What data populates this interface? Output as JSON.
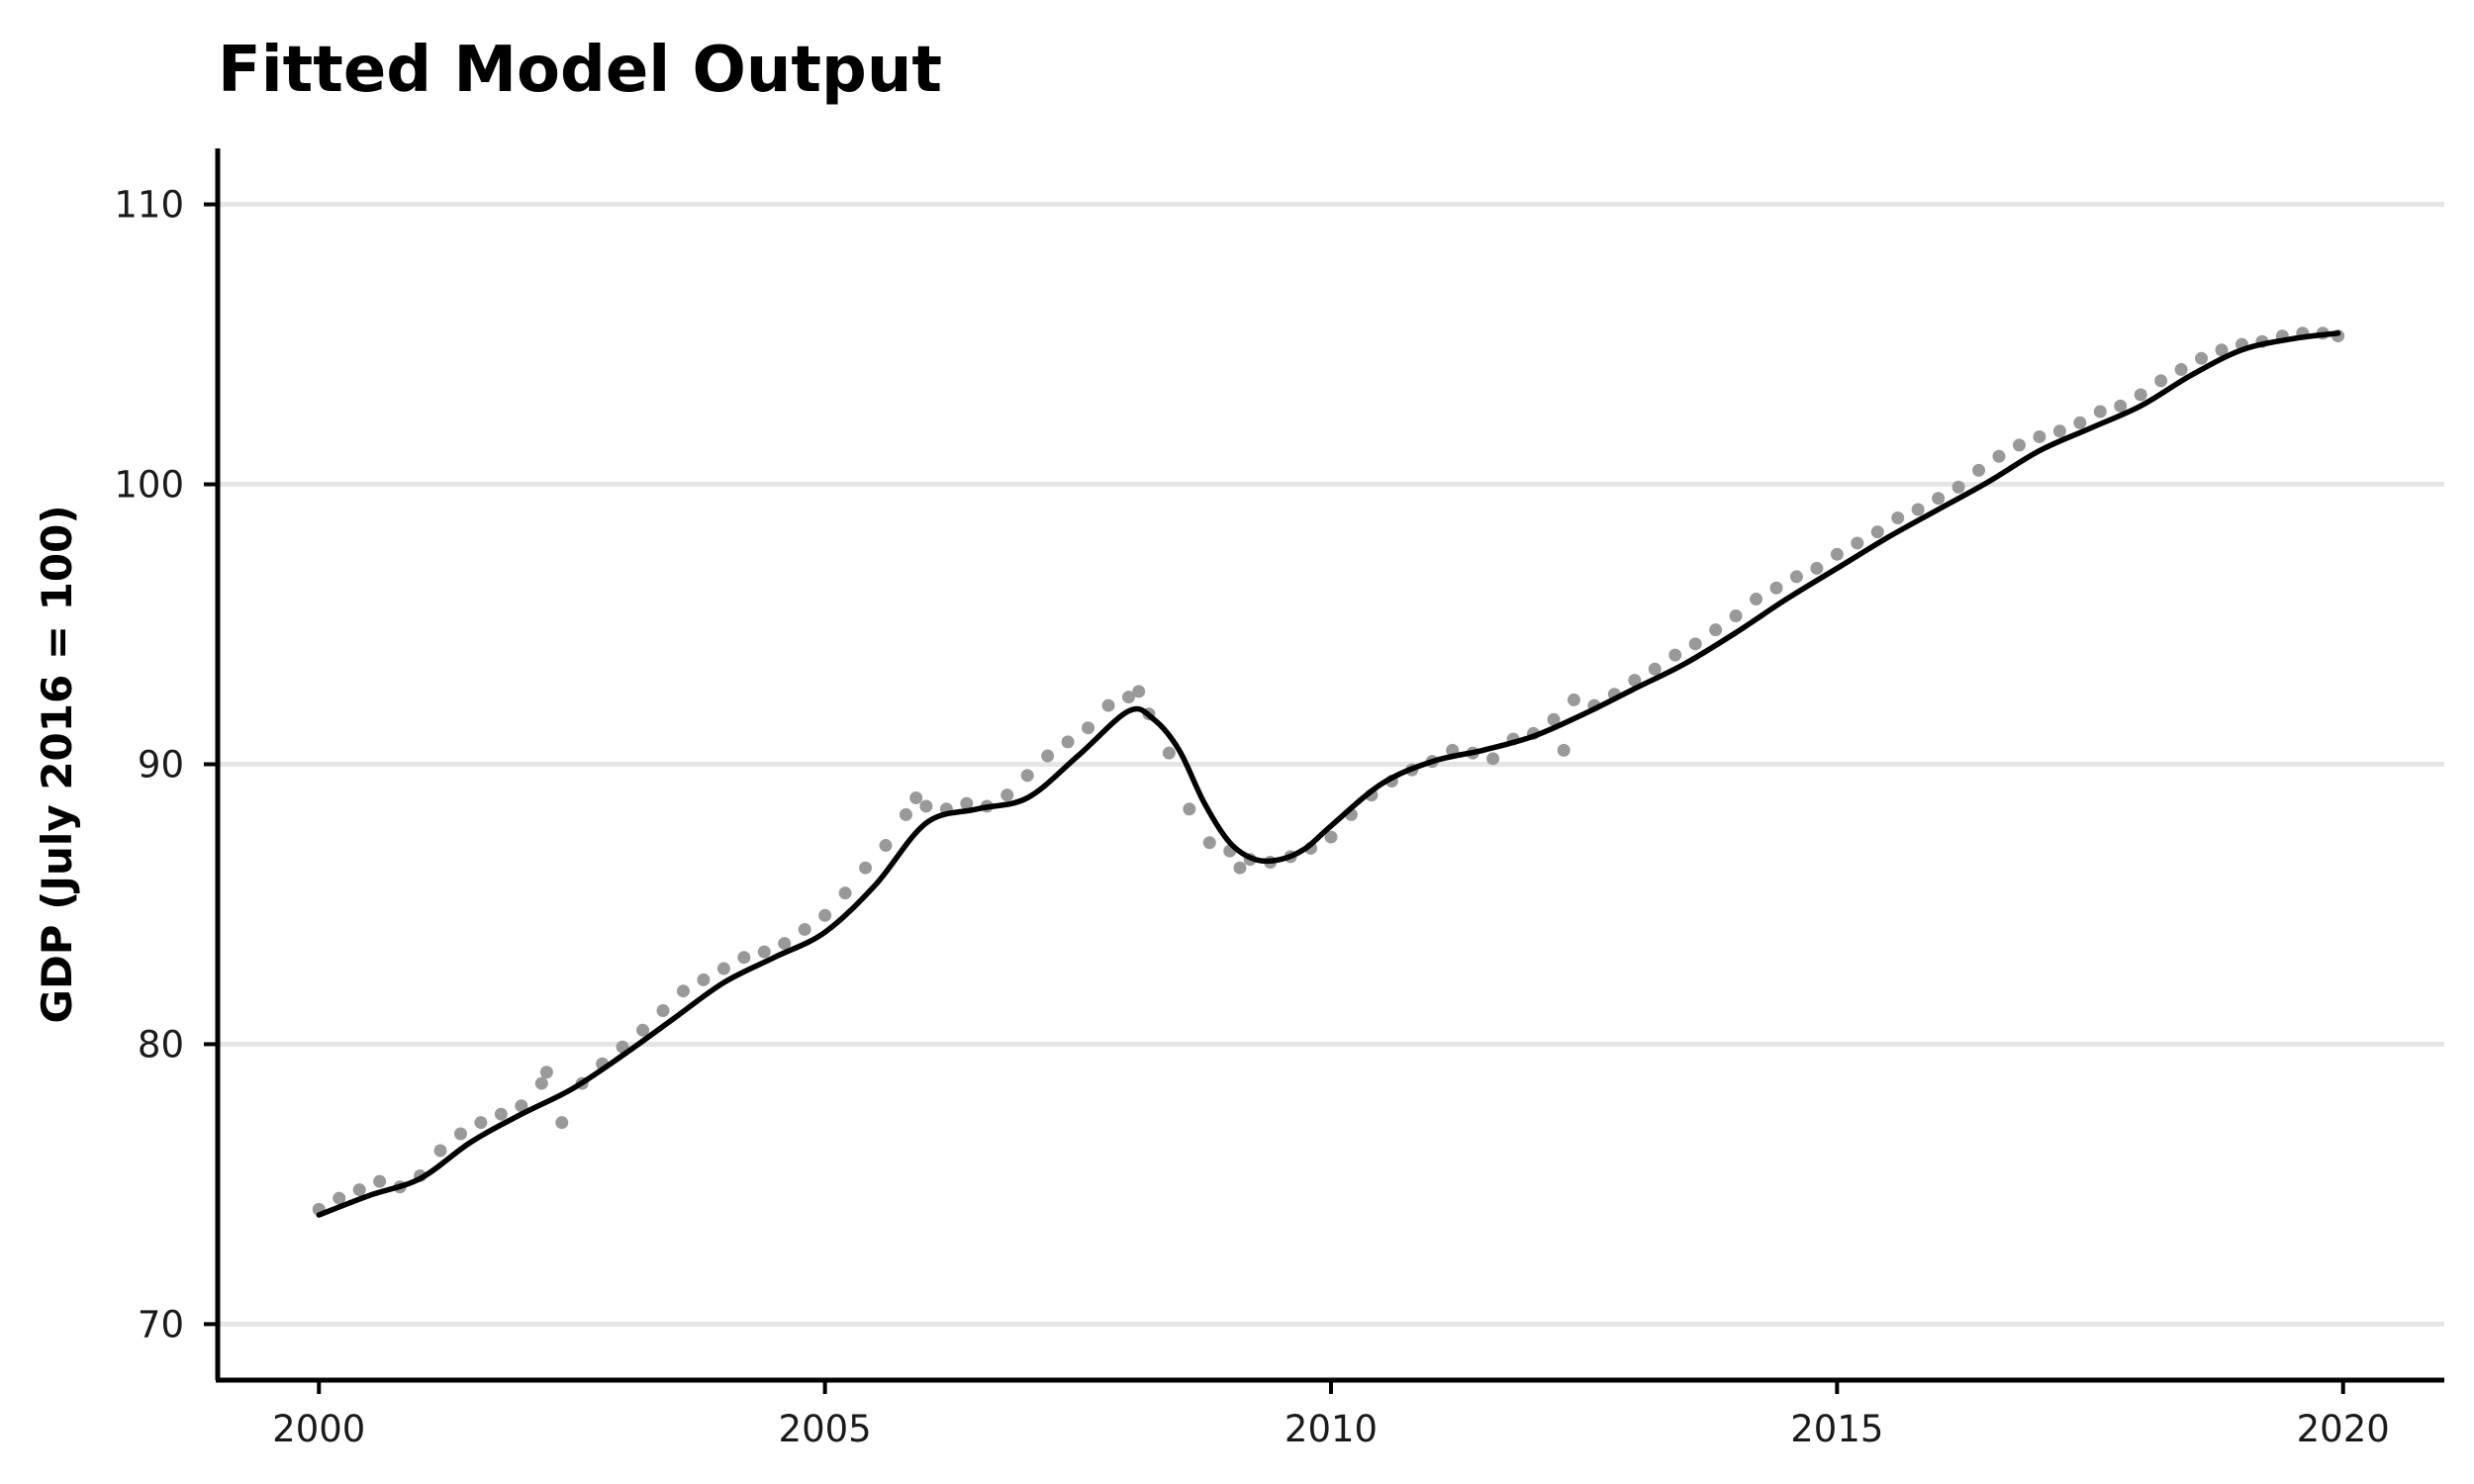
{
  "chart_data": {
    "type": "scatter",
    "title": "Fitted Model Output",
    "xlabel": "",
    "ylabel": "GDP (July 2016 = 100)",
    "xlim": [
      1999.0,
      2021.0
    ],
    "ylim": [
      68.0,
      112.0
    ],
    "xticks": [
      2000,
      2005,
      2010,
      2015,
      2020
    ],
    "xtick_labels": [
      "2000",
      "2005",
      "2010",
      "2015",
      "2020"
    ],
    "yticks": [
      70,
      80,
      90,
      100,
      110
    ],
    "ytick_labels": [
      "70",
      "80",
      "90",
      "100",
      "110"
    ],
    "grid": "horizontal major gridlines",
    "legend": "none",
    "colors": {
      "points": "#999999",
      "fit_line": "#000000",
      "grid": "#e5e5e5",
      "axis": "#000000"
    },
    "series": [
      {
        "kind": "scatter",
        "x": [
          2000.0,
          2000.2,
          2000.4,
          2000.6,
          2000.8,
          2001.0,
          2001.2,
          2001.4,
          2001.6,
          2001.8,
          2002.0,
          2002.2,
          2002.25,
          2002.4,
          2002.6,
          2002.8,
          2003.0,
          2003.2,
          2003.4,
          2003.6,
          2003.8,
          2004.0,
          2004.2,
          2004.4,
          2004.6,
          2004.8,
          2005.0,
          2005.2,
          2005.4,
          2005.6,
          2005.8,
          2005.9,
          2006.0,
          2006.2,
          2006.4,
          2006.6,
          2006.8,
          2007.0,
          2007.2,
          2007.4,
          2007.6,
          2007.8,
          2008.0,
          2008.1,
          2008.2,
          2008.4,
          2008.6,
          2008.8,
          2009.0,
          2009.1,
          2009.2,
          2009.4,
          2009.6,
          2009.8,
          2010.0,
          2010.2,
          2010.4,
          2010.6,
          2010.8,
          2011.0,
          2011.2,
          2011.4,
          2011.6,
          2011.8,
          2012.0,
          2012.2,
          2012.3,
          2012.4,
          2012.6,
          2012.8,
          2013.0,
          2013.2,
          2013.4,
          2013.6,
          2013.8,
          2014.0,
          2014.2,
          2014.4,
          2014.6,
          2014.8,
          2015.0,
          2015.2,
          2015.4,
          2015.6,
          2015.8,
          2016.0,
          2016.2,
          2016.4,
          2016.6,
          2016.8,
          2017.0,
          2017.2,
          2017.4,
          2017.6,
          2017.8,
          2018.0,
          2018.2,
          2018.4,
          2018.6,
          2018.8,
          2019.0,
          2019.2,
          2019.4,
          2019.6,
          2019.8,
          2019.95
        ],
        "y": [
          74.1,
          74.5,
          74.8,
          75.1,
          74.9,
          75.3,
          76.2,
          76.8,
          77.2,
          77.5,
          77.8,
          78.6,
          79.0,
          77.2,
          78.6,
          79.3,
          79.9,
          80.5,
          81.2,
          81.9,
          82.3,
          82.7,
          83.1,
          83.3,
          83.6,
          84.1,
          84.6,
          85.4,
          86.3,
          87.1,
          88.2,
          88.8,
          88.5,
          88.4,
          88.6,
          88.5,
          88.9,
          89.6,
          90.3,
          90.8,
          91.3,
          92.1,
          92.4,
          92.6,
          91.8,
          90.4,
          88.4,
          87.2,
          86.9,
          86.3,
          86.6,
          86.5,
          86.7,
          87.0,
          87.4,
          88.2,
          88.9,
          89.4,
          89.8,
          90.1,
          90.5,
          90.4,
          90.2,
          90.9,
          91.1,
          91.6,
          90.5,
          92.3,
          92.1,
          92.5,
          93.0,
          93.4,
          93.9,
          94.3,
          94.8,
          95.3,
          95.9,
          96.3,
          96.7,
          97.0,
          97.5,
          97.9,
          98.3,
          98.8,
          99.1,
          99.5,
          99.9,
          100.5,
          101.0,
          101.4,
          101.7,
          101.9,
          102.2,
          102.6,
          102.8,
          103.2,
          103.7,
          104.1,
          104.5,
          104.8,
          105.0,
          105.1,
          105.3,
          105.4,
          105.4,
          105.3
        ]
      },
      {
        "kind": "line",
        "name": "",
        "x": [
          2000.0,
          2000.5,
          2001.0,
          2001.5,
          2002.0,
          2002.5,
          2003.0,
          2003.5,
          2004.0,
          2004.5,
          2005.0,
          2005.5,
          2006.0,
          2006.5,
          2007.0,
          2007.5,
          2008.0,
          2008.25,
          2008.5,
          2008.75,
          2009.0,
          2009.25,
          2009.5,
          2009.75,
          2010.0,
          2010.5,
          2011.0,
          2011.5,
          2012.0,
          2012.5,
          2013.0,
          2013.5,
          2014.0,
          2014.5,
          2015.0,
          2015.5,
          2016.0,
          2016.5,
          2017.0,
          2017.5,
          2018.0,
          2018.5,
          2019.0,
          2019.5,
          2019.95
        ],
        "y": [
          73.9,
          74.6,
          75.2,
          76.5,
          77.5,
          78.4,
          79.6,
          80.9,
          82.2,
          83.1,
          84.0,
          85.7,
          87.9,
          88.4,
          88.8,
          90.3,
          91.9,
          91.6,
          90.5,
          88.6,
          87.2,
          86.6,
          86.6,
          87.0,
          87.8,
          89.3,
          90.1,
          90.5,
          91.0,
          91.8,
          92.7,
          93.6,
          94.7,
          95.9,
          97.0,
          98.1,
          99.1,
          100.1,
          101.2,
          102.0,
          102.8,
          103.9,
          104.8,
          105.2,
          105.4
        ]
      }
    ]
  }
}
